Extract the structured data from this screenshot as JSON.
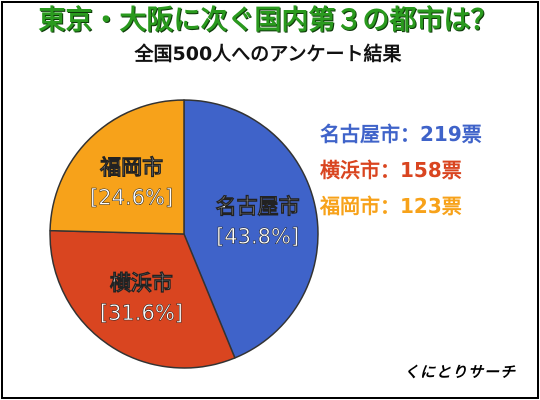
{
  "header": {
    "title": "東京・大阪に次ぐ国内第３の都市は？",
    "subtitle": "全国500人へのアンケート結果"
  },
  "colors": {
    "title": "#2a9a1e",
    "nagoya": "#3f63c9",
    "yokohama": "#d94520",
    "fukuoka": "#f7a21a",
    "border": "#000000"
  },
  "chart_data": {
    "type": "pie",
    "title": "東京・大阪に次ぐ国内第３の都市は？",
    "subtitle": "全国500人へのアンケート結果",
    "total": 500,
    "categories": [
      "名古屋市",
      "横浜市",
      "福岡市"
    ],
    "values": [
      219,
      158,
      123
    ],
    "percent_labels": [
      "[43.8%]",
      "[31.6%]",
      "[24.6%]"
    ],
    "legend_labels": [
      "名古屋市：219票",
      "横浜市：158票",
      "福岡市：123票"
    ],
    "legend_position": "right"
  },
  "footer": {
    "brand": "くにとりサーチ"
  }
}
